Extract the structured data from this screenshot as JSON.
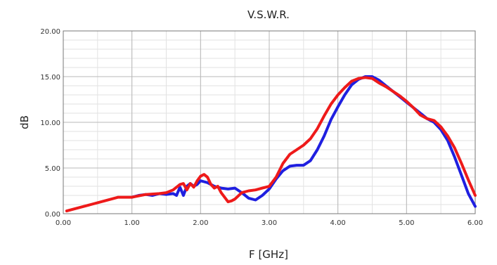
{
  "chart_data": {
    "type": "line",
    "title": "V.S.W.R.",
    "xlabel": "F [GHz]",
    "ylabel": "dB",
    "xlim": [
      0,
      6
    ],
    "ylim": [
      0,
      20
    ],
    "x_ticks": [
      "0.00",
      "1.00",
      "2.00",
      "3.00",
      "4.00",
      "5.00",
      "6.00"
    ],
    "y_ticks": [
      "0.00",
      "5.00",
      "10.00",
      "15.00",
      "20.00"
    ],
    "grid": true,
    "series": [
      {
        "color": "#1f1fe0",
        "points": [
          [
            1.0,
            1.8
          ],
          [
            1.1,
            2.0
          ],
          [
            1.2,
            2.1
          ],
          [
            1.3,
            2.0
          ],
          [
            1.4,
            2.2
          ],
          [
            1.5,
            2.1
          ],
          [
            1.6,
            2.2
          ],
          [
            1.65,
            2.0
          ],
          [
            1.7,
            2.9
          ],
          [
            1.75,
            2.0
          ],
          [
            1.8,
            3.0
          ],
          [
            1.85,
            3.3
          ],
          [
            1.9,
            3.0
          ],
          [
            1.95,
            3.2
          ],
          [
            2.0,
            3.6
          ],
          [
            2.05,
            3.5
          ],
          [
            2.1,
            3.4
          ],
          [
            2.2,
            3.0
          ],
          [
            2.3,
            2.8
          ],
          [
            2.4,
            2.7
          ],
          [
            2.5,
            2.8
          ],
          [
            2.6,
            2.3
          ],
          [
            2.7,
            1.7
          ],
          [
            2.8,
            1.5
          ],
          [
            2.9,
            2.0
          ],
          [
            3.0,
            2.7
          ],
          [
            3.1,
            3.8
          ],
          [
            3.2,
            4.7
          ],
          [
            3.3,
            5.2
          ],
          [
            3.4,
            5.3
          ],
          [
            3.5,
            5.3
          ],
          [
            3.6,
            5.8
          ],
          [
            3.7,
            7.0
          ],
          [
            3.8,
            8.5
          ],
          [
            3.9,
            10.3
          ],
          [
            4.0,
            11.7
          ],
          [
            4.1,
            13.0
          ],
          [
            4.2,
            14.1
          ],
          [
            4.3,
            14.7
          ],
          [
            4.4,
            15.0
          ],
          [
            4.5,
            15.0
          ],
          [
            4.6,
            14.6
          ],
          [
            4.7,
            14.0
          ],
          [
            4.8,
            13.4
          ],
          [
            4.9,
            12.8
          ],
          [
            5.0,
            12.2
          ],
          [
            5.1,
            11.6
          ],
          [
            5.2,
            11.0
          ],
          [
            5.3,
            10.4
          ],
          [
            5.4,
            10.0
          ],
          [
            5.5,
            9.2
          ],
          [
            5.6,
            8.0
          ],
          [
            5.7,
            6.2
          ],
          [
            5.8,
            4.2
          ],
          [
            5.9,
            2.2
          ],
          [
            6.0,
            0.8
          ]
        ]
      },
      {
        "color": "#ee1a1a",
        "points": [
          [
            0.05,
            0.3
          ],
          [
            0.2,
            0.6
          ],
          [
            0.4,
            1.0
          ],
          [
            0.6,
            1.4
          ],
          [
            0.8,
            1.8
          ],
          [
            1.0,
            1.8
          ],
          [
            1.2,
            2.1
          ],
          [
            1.4,
            2.2
          ],
          [
            1.5,
            2.3
          ],
          [
            1.6,
            2.6
          ],
          [
            1.7,
            3.2
          ],
          [
            1.75,
            3.3
          ],
          [
            1.8,
            2.6
          ],
          [
            1.85,
            3.3
          ],
          [
            1.9,
            2.9
          ],
          [
            1.95,
            3.6
          ],
          [
            2.0,
            4.1
          ],
          [
            2.05,
            4.3
          ],
          [
            2.1,
            4.0
          ],
          [
            2.15,
            3.2
          ],
          [
            2.2,
            2.8
          ],
          [
            2.25,
            3.0
          ],
          [
            2.3,
            2.3
          ],
          [
            2.35,
            1.8
          ],
          [
            2.4,
            1.3
          ],
          [
            2.45,
            1.4
          ],
          [
            2.5,
            1.6
          ],
          [
            2.6,
            2.3
          ],
          [
            2.7,
            2.5
          ],
          [
            2.8,
            2.6
          ],
          [
            2.9,
            2.8
          ],
          [
            3.0,
            3.0
          ],
          [
            3.1,
            4.0
          ],
          [
            3.2,
            5.5
          ],
          [
            3.3,
            6.5
          ],
          [
            3.4,
            7.0
          ],
          [
            3.5,
            7.5
          ],
          [
            3.6,
            8.2
          ],
          [
            3.7,
            9.3
          ],
          [
            3.8,
            10.7
          ],
          [
            3.9,
            12.0
          ],
          [
            4.0,
            13.0
          ],
          [
            4.1,
            13.8
          ],
          [
            4.2,
            14.5
          ],
          [
            4.3,
            14.8
          ],
          [
            4.4,
            14.9
          ],
          [
            4.5,
            14.8
          ],
          [
            4.6,
            14.3
          ],
          [
            4.7,
            13.9
          ],
          [
            4.8,
            13.4
          ],
          [
            4.9,
            12.9
          ],
          [
            5.0,
            12.3
          ],
          [
            5.1,
            11.6
          ],
          [
            5.2,
            10.8
          ],
          [
            5.3,
            10.4
          ],
          [
            5.4,
            10.2
          ],
          [
            5.5,
            9.5
          ],
          [
            5.6,
            8.5
          ],
          [
            5.7,
            7.2
          ],
          [
            5.8,
            5.5
          ],
          [
            5.9,
            3.7
          ],
          [
            6.0,
            2.0
          ]
        ]
      }
    ]
  }
}
